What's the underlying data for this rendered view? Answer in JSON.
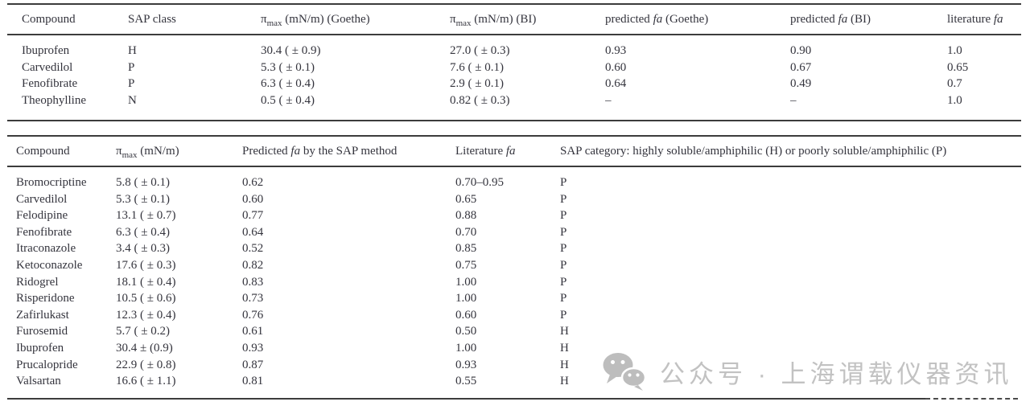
{
  "page": {
    "background": "#ffffff",
    "text_color": "#34343d",
    "rule_color": "#3c3c3c"
  },
  "table1": {
    "columns": [
      [
        {
          "t": "Compound"
        }
      ],
      [
        {
          "t": "SAP class"
        }
      ],
      [
        {
          "t": "π"
        },
        {
          "t": "max",
          "s": "sub"
        },
        {
          "t": " (mN/m) (Goethe)"
        }
      ],
      [
        {
          "t": "π"
        },
        {
          "t": "max",
          "s": "sub"
        },
        {
          "t": " (mN/m) (BI)"
        }
      ],
      [
        {
          "t": "predicted "
        },
        {
          "t": "fa",
          "s": "i"
        },
        {
          "t": " (Goethe)"
        }
      ],
      [
        {
          "t": "predicted "
        },
        {
          "t": "fa",
          "s": "i"
        },
        {
          "t": " (BI)"
        }
      ],
      [
        {
          "t": "literature "
        },
        {
          "t": "fa",
          "s": "i"
        }
      ]
    ],
    "rows": [
      [
        "Ibuprofen",
        "H",
        "30.4 ( ± 0.9)",
        "27.0 ( ± 0.3)",
        "0.93",
        "0.90",
        "1.0"
      ],
      [
        "Carvedilol",
        "P",
        "5.3 ( ± 0.1)",
        "7.6 ( ± 0.1)",
        "0.60",
        "0.67",
        "0.65"
      ],
      [
        "Fenofibrate",
        "P",
        "6.3 ( ± 0.4)",
        "2.9 ( ± 0.1)",
        "0.64",
        "0.49",
        "0.7"
      ],
      [
        "Theophylline",
        "N",
        "0.5 ( ± 0.4)",
        "0.82 ( ± 0.3)",
        "–",
        "–",
        "1.0"
      ]
    ]
  },
  "table2": {
    "columns": [
      [
        {
          "t": "Compound"
        }
      ],
      [
        {
          "t": "π"
        },
        {
          "t": "max",
          "s": "sub"
        },
        {
          "t": " (mN/m)"
        }
      ],
      [
        {
          "t": "Predicted "
        },
        {
          "t": "fa",
          "s": "i"
        },
        {
          "t": " by the SAP method"
        }
      ],
      [
        {
          "t": "Literature "
        },
        {
          "t": "fa",
          "s": "i"
        }
      ],
      [
        {
          "t": "SAP category: highly soluble/amphiphilic (H) or poorly soluble/amphiphilic (P)"
        }
      ]
    ],
    "rows": [
      [
        "Bromocriptine",
        "5.8 ( ± 0.1)",
        "0.62",
        "0.70–0.95",
        "P"
      ],
      [
        "Carvedilol",
        "5.3 ( ± 0.1)",
        "0.60",
        "0.65",
        "P"
      ],
      [
        "Felodipine",
        "13.1 ( ± 0.7)",
        "0.77",
        "0.88",
        "P"
      ],
      [
        "Fenofibrate",
        "6.3 ( ± 0.4)",
        "0.64",
        "0.70",
        "P"
      ],
      [
        "Itraconazole",
        "3.4 ( ± 0.3)",
        "0.52",
        "0.85",
        "P"
      ],
      [
        "Ketoconazole",
        "17.6 ( ± 0.3)",
        "0.82",
        "0.75",
        "P"
      ],
      [
        "Ridogrel",
        "18.1 ( ± 0.4)",
        "0.83",
        "1.00",
        "P"
      ],
      [
        "Risperidone",
        "10.5 ( ± 0.6)",
        "0.73",
        "1.00",
        "P"
      ],
      [
        "Zafirlukast",
        "12.3 ( ± 0.4)",
        "0.76",
        "0.60",
        "P"
      ],
      [
        "Furosemid",
        "5.7 ( ± 0.2)",
        "0.61",
        "0.50",
        "H"
      ],
      [
        "Ibuprofen",
        "30.4 ± (0.9)",
        "0.93",
        "1.00",
        "H"
      ],
      [
        "Prucalopride",
        "22.9 ( ± 0.8)",
        "0.87",
        "0.93",
        "H"
      ],
      [
        "Valsartan",
        "16.6 ( ± 1.1)",
        "0.81",
        "0.55",
        "H"
      ]
    ]
  },
  "watermark": {
    "icon": "wechat-icon",
    "text": "公众号 · 上海谓载仪器资讯",
    "color": "#c2c2c2"
  }
}
